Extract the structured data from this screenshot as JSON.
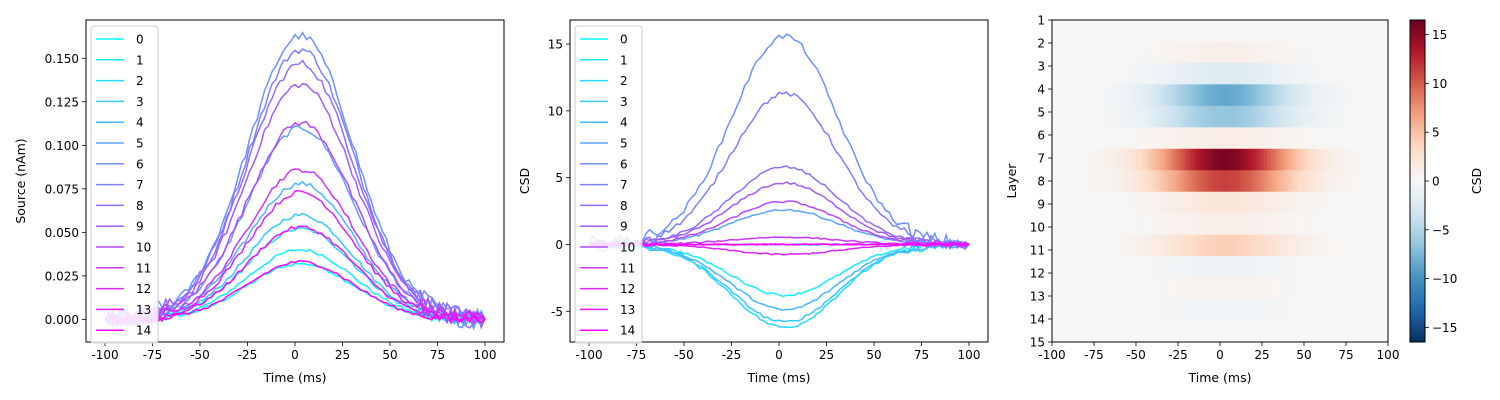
{
  "chart_data": [
    {
      "type": "line",
      "xlabel": "Time (ms)",
      "ylabel": "Source (nAm)",
      "xlim": [
        -110,
        110
      ],
      "ylim": [
        -0.013,
        0.172
      ],
      "xticks": [
        "-100",
        "-75",
        "-50",
        "-25",
        "0",
        "25",
        "50",
        "75",
        "100"
      ],
      "yticks": [
        "0.000",
        "0.025",
        "0.050",
        "0.075",
        "0.100",
        "0.125",
        "0.150"
      ],
      "ytick_values": [
        0,
        0.025,
        0.05,
        0.075,
        0.1,
        0.125,
        0.15
      ],
      "x_range": [
        -100,
        100
      ],
      "peak_center_ms": 3,
      "peak_width_ms": 28,
      "legend": {
        "placement": "upper-left",
        "entries": [
          "0",
          "1",
          "2",
          "3",
          "4",
          "5",
          "6",
          "7",
          "8",
          "9",
          "10",
          "11",
          "12",
          "13",
          "14"
        ]
      },
      "series_colors": [
        "#00ffff",
        "#12edff",
        "#24dbff",
        "#36c9ff",
        "#48b7ff",
        "#5ba4ff",
        "#6d92ff",
        "#7f80ff",
        "#916eff",
        "#a35cff",
        "#b649ff",
        "#c837ff",
        "#da25ff",
        "#ec13ff",
        "#ff00ff"
      ],
      "series_peaks": [
        0.032,
        0.04,
        0.052,
        0.06,
        0.078,
        0.11,
        0.163,
        0.155,
        0.147,
        0.135,
        0.113,
        0.086,
        0.073,
        0.053,
        0.033
      ],
      "grid": false
    },
    {
      "type": "line",
      "xlabel": "Time (ms)",
      "ylabel": "CSD",
      "xlim": [
        -110,
        110
      ],
      "ylim": [
        -7.3,
        16.8
      ],
      "xticks": [
        "-100",
        "-75",
        "-50",
        "-25",
        "0",
        "25",
        "50",
        "75",
        "100"
      ],
      "yticks": [
        "-5",
        "0",
        "5",
        "10",
        "15"
      ],
      "ytick_values": [
        -5,
        0,
        5,
        10,
        15
      ],
      "x_range": [
        -100,
        100
      ],
      "peak_center_ms": 3,
      "peak_width_ms": 28,
      "legend": {
        "placement": "upper-left",
        "entries": [
          "0",
          "1",
          "2",
          "3",
          "4",
          "5",
          "6",
          "7",
          "8",
          "9",
          "10",
          "11",
          "12",
          "13",
          "14"
        ]
      },
      "series_colors": [
        "#00ffff",
        "#12edff",
        "#24dbff",
        "#36c9ff",
        "#48b7ff",
        "#5ba4ff",
        "#6d92ff",
        "#7f80ff",
        "#916eff",
        "#a35cff",
        "#b649ff",
        "#c837ff",
        "#da25ff",
        "#ec13ff",
        "#ff00ff"
      ],
      "series_peaks": [
        0,
        -3.8,
        -6.2,
        -5.8,
        -4.9,
        2.6,
        15.6,
        11.3,
        5.8,
        4.6,
        3.2,
        0.55,
        -0.75,
        0,
        0
      ],
      "grid": false
    },
    {
      "type": "heatmap",
      "xlabel": "Time (ms)",
      "ylabel": "Layer",
      "xlim": [
        -100,
        100
      ],
      "xticks": [
        "-100",
        "-75",
        "-50",
        "-25",
        "0",
        "25",
        "50",
        "75",
        "100"
      ],
      "yticks": [
        "1",
        "2",
        "3",
        "4",
        "5",
        "6",
        "7",
        "8",
        "9",
        "10",
        "11",
        "12",
        "13",
        "14",
        "15"
      ],
      "layer_peaks": [
        0,
        0.9,
        -2.2,
        -8.5,
        -6.5,
        1.2,
        15.6,
        11.3,
        2.0,
        1.0,
        4.0,
        -0.8,
        0.5,
        -0.6,
        0
      ],
      "colormap": "RdBu_r",
      "colorbar": {
        "label": "CSD",
        "vmin": -16.5,
        "vmax": 16.5,
        "ticks": [
          "−15",
          "−10",
          "−5",
          "0",
          "5",
          "10",
          "15"
        ],
        "tick_values": [
          -15,
          -10,
          -5,
          0,
          5,
          10,
          15
        ]
      }
    }
  ]
}
